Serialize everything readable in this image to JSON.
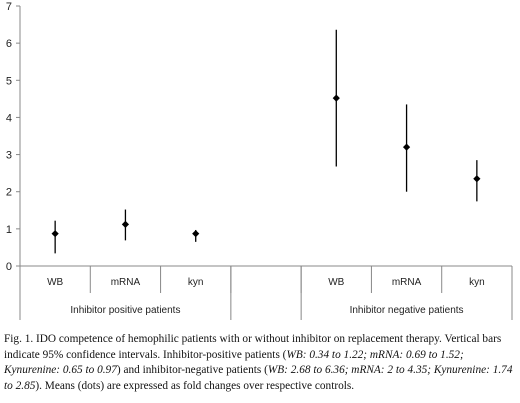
{
  "chart_data": {
    "type": "scatter",
    "subtype": "point-with-error-bars",
    "ylim": [
      0,
      7
    ],
    "yticks": [
      0,
      1,
      2,
      3,
      4,
      5,
      6,
      7
    ],
    "grid": false,
    "legend": "none",
    "groups": [
      {
        "label": "Inhibitor positive patients",
        "categories": [
          "WB",
          "mRNA",
          "kyn"
        ]
      },
      {
        "label": "Inhibitor negative patients",
        "categories": [
          "WB",
          "mRNA",
          "kyn"
        ]
      }
    ],
    "points": [
      {
        "group": 0,
        "category": "WB",
        "mean": 0.87,
        "low": 0.34,
        "high": 1.22
      },
      {
        "group": 0,
        "category": "mRNA",
        "mean": 1.12,
        "low": 0.69,
        "high": 1.52
      },
      {
        "group": 0,
        "category": "kyn",
        "mean": 0.87,
        "low": 0.65,
        "high": 0.97
      },
      {
        "group": 1,
        "category": "WB",
        "mean": 4.52,
        "low": 2.68,
        "high": 6.36
      },
      {
        "group": 1,
        "category": "mRNA",
        "mean": 3.2,
        "low": 2.0,
        "high": 4.35
      },
      {
        "group": 1,
        "category": "kyn",
        "mean": 2.35,
        "low": 1.74,
        "high": 2.85
      }
    ],
    "colors": {
      "marks": "#000000",
      "axis": "#888888"
    }
  },
  "caption": {
    "p1": "Fig. 1. IDO competence of hemophilic patients with or without inhibitor on replacement therapy. Vertical bars indicate 95% confidence intervals. Inhibitor-positive patients (",
    "i1": "WB: 0.34 to 1.22; mRNA: 0.69 to 1.52; Kynurenine: 0.65 to 0.97",
    "p2": ") and inhibitor-negative patients (",
    "i2": "WB: 2.68 to 6.36; mRNA: 2 to 4.35; Kynurenine: 1.74 to 2.85",
    "p3": "). Means (dots) are expressed as fold changes over respective controls."
  }
}
